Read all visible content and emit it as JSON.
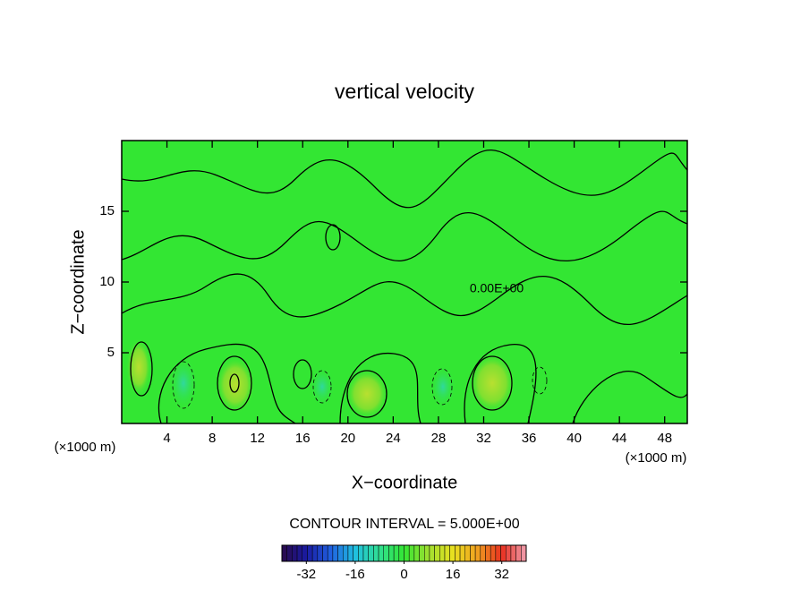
{
  "chart_data": {
    "type": "contour",
    "title": "vertical velocity",
    "x_label": "X−coordinate",
    "y_label": "Z−coordinate",
    "left_unit_label": "(×1000 m)",
    "right_unit_label": "(×1000 m)",
    "contour_label": "0.00E+00",
    "interval_text": "CONTOUR INTERVAL = 5.000E+00",
    "xlim": [
      0,
      50
    ],
    "xticks": [
      4,
      8,
      12,
      16,
      20,
      24,
      28,
      32,
      36,
      40,
      44,
      48
    ],
    "ylim": [
      0,
      20
    ],
    "yticks": [
      5,
      10,
      15
    ],
    "field_color": "#33e633",
    "colorbar_lim": [
      -40,
      40
    ],
    "colorbar_ticks": [
      -32,
      -16,
      0,
      16,
      32
    ],
    "colormap": [
      "#2a0a4a",
      "#1a1aa0",
      "#2060e0",
      "#20c0e0",
      "#30e090",
      "#33e633",
      "#a0e030",
      "#e8e020",
      "#f0a020",
      "#e83020",
      "#f0a0b0"
    ]
  }
}
